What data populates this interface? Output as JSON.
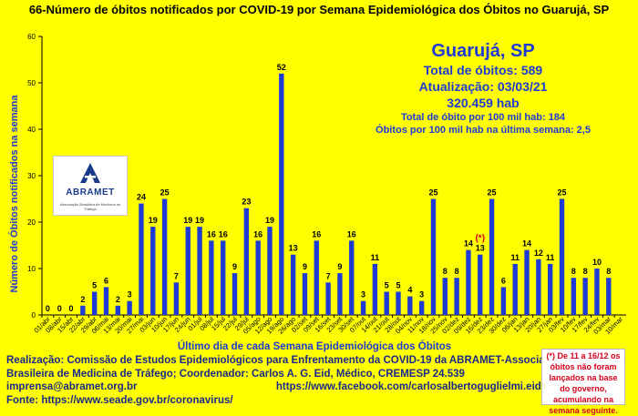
{
  "title": "66-Número de óbitos notificados por COVID-19 por Semana Epidemiológica dos Óbitos no Guarujá, SP",
  "info": {
    "city": "Guarujá, SP",
    "total": "Total de óbitos: 589",
    "updated": "Atualização: 03/03/21",
    "population": "320.459 hab",
    "rate": "Total de óbito por 100 mil hab: 184",
    "rate_last_week": "Óbitos por 100 mil hab na última semana: 2,5"
  },
  "logo": {
    "name": "ABRAMET",
    "subtitle": "Associação Brasileira de Medicina de Tráfego"
  },
  "footer": {
    "line1": "Realização: Comissão de Estudos Epidemiológicos para Enfrentamento da COVID-19 da ABRAMET-Associação",
    "line2": "Brasileira de Medicina de Tráfego; Coordenador: Carlos A. G. Eid, Médico, CREMESP 24.539",
    "email": "imprensa@abramet.org.br",
    "facebook": "https://www.facebook.com/carlosalbertoguglielmi.eid/",
    "source": "Fonte: https://www.seade.gov.br/coronavirus/"
  },
  "note": "(*) De 11 a 16/12 os óbitos não foram lançados na base do governo, acumulando na semana seguinte.",
  "colors": {
    "background": "#ffff00",
    "bar": "#1f3bd6",
    "title": "#000000",
    "info": "#1f3bd6",
    "note": "#d9001b"
  },
  "chart_data": {
    "type": "bar",
    "xlabel": "Último dia de cada Semana Epidemiológica dos Óbitos",
    "ylabel": "Número de Óbitos notificados na semana",
    "ylim": [
      0,
      60
    ],
    "yticks": [
      0,
      10,
      20,
      30,
      40,
      50,
      60
    ],
    "grid": false,
    "categories": [
      "01/abr",
      "08/abr",
      "15/abr",
      "22/abr",
      "29/abr",
      "06/mai",
      "13/mai",
      "20/mai",
      "27/mai",
      "03/jun",
      "10/jun",
      "17/jun",
      "24/jun",
      "01/jul",
      "08/jul",
      "15/jul",
      "22/jul",
      "29/jul",
      "05/ago",
      "12/ago",
      "19/ago",
      "26/ago",
      "02/set",
      "09/set",
      "16/set",
      "23/set",
      "30/set",
      "07/out",
      "14/out",
      "21/out",
      "28/out",
      "04/nov",
      "11/nov",
      "18/nov",
      "25/nov",
      "02/dez",
      "09/dez",
      "16/dez",
      "23/dez",
      "30/dez",
      "06/jan",
      "13/jan",
      "20/jan",
      "27/jan",
      "03/fev",
      "10/fev",
      "17/fev",
      "24/fev",
      "03/mar",
      "10/mar"
    ],
    "values": [
      0,
      0,
      0,
      2,
      5,
      6,
      2,
      3,
      24,
      19,
      25,
      7,
      19,
      19,
      16,
      16,
      9,
      23,
      16,
      19,
      52,
      13,
      9,
      16,
      7,
      9,
      16,
      3,
      11,
      5,
      5,
      4,
      3,
      25,
      8,
      8,
      14,
      13,
      25,
      6,
      11,
      14,
      12,
      11,
      25,
      8,
      8,
      10,
      8,
      null
    ],
    "value_labels": [
      "0",
      "0",
      "0",
      "2",
      "5",
      "6",
      "2",
      "3",
      "24",
      "19",
      "25",
      "7",
      "19",
      "19",
      "16",
      "16",
      "9",
      "23",
      "16",
      "19",
      "52",
      "13",
      "9",
      "16",
      "7",
      "9",
      "16",
      "3",
      "11",
      "5",
      "5",
      "4",
      "3",
      "25",
      "8",
      "8",
      "14",
      "13",
      "25",
      "6",
      "11",
      "14",
      "12",
      "11",
      "25",
      "8",
      "8",
      "10",
      "8",
      ""
    ],
    "annotations": [
      {
        "category": "16/dez",
        "text": "(*)"
      }
    ]
  }
}
